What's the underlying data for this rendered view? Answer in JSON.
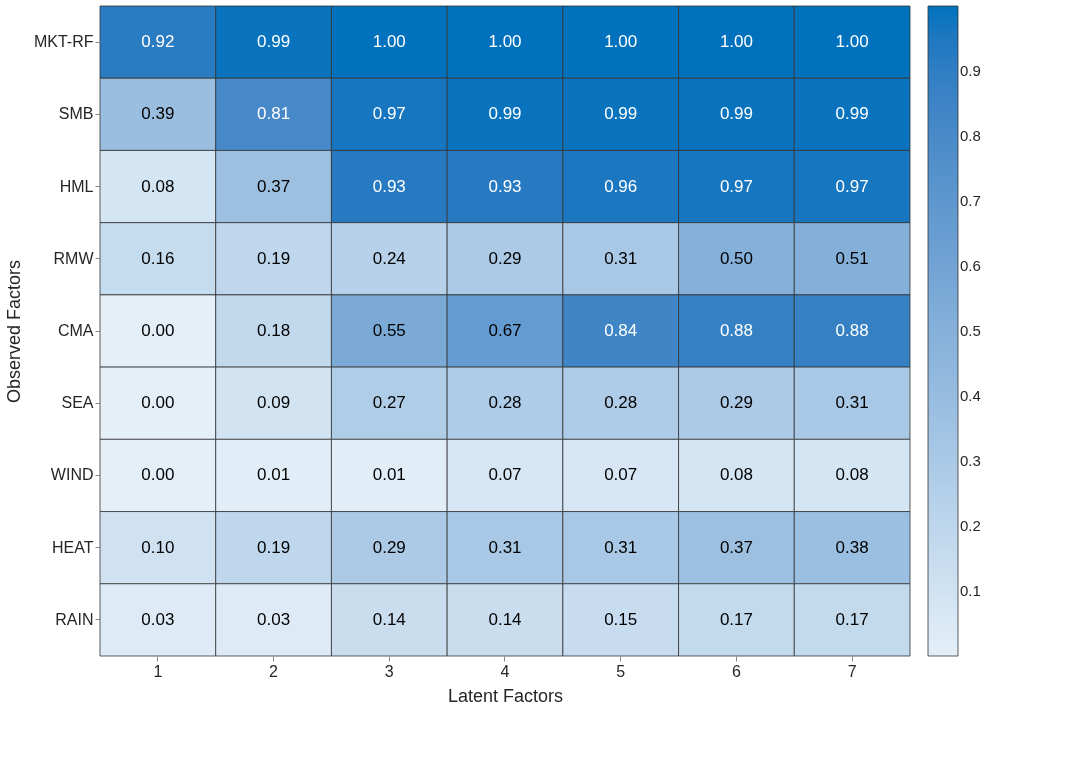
{
  "chart_data": {
    "type": "heatmap",
    "xlabel": "Latent Factors",
    "ylabel": "Observed Factors",
    "categories": [
      "1",
      "2",
      "3",
      "4",
      "5",
      "6",
      "7"
    ],
    "y_categories": [
      "MKT-RF",
      "SMB",
      "HML",
      "RMW",
      "CMA",
      "SEA",
      "WIND",
      "HEAT",
      "RAIN"
    ],
    "cells": [
      [
        0.92,
        0.99,
        1.0,
        1.0,
        1.0,
        1.0,
        1.0
      ],
      [
        0.39,
        0.81,
        0.97,
        0.99,
        0.99,
        0.99,
        0.99
      ],
      [
        0.08,
        0.37,
        0.93,
        0.93,
        0.96,
        0.97,
        0.97
      ],
      [
        0.16,
        0.19,
        0.24,
        0.29,
        0.31,
        0.5,
        0.51
      ],
      [
        0.0,
        0.18,
        0.55,
        0.67,
        0.84,
        0.88,
        0.88
      ],
      [
        0.0,
        0.09,
        0.27,
        0.28,
        0.28,
        0.29,
        0.31
      ],
      [
        0.0,
        0.01,
        0.01,
        0.07,
        0.07,
        0.08,
        0.08
      ],
      [
        0.1,
        0.19,
        0.29,
        0.31,
        0.31,
        0.37,
        0.38
      ],
      [
        0.03,
        0.03,
        0.14,
        0.14,
        0.15,
        0.17,
        0.17
      ]
    ],
    "cell_labels": [
      [
        "0.92",
        "0.99",
        "1.00",
        "1.00",
        "1.00",
        "1.00",
        "1.00"
      ],
      [
        "0.39",
        "0.81",
        "0.97",
        "0.99",
        "0.99",
        "0.99",
        "0.99"
      ],
      [
        "0.08",
        "0.37",
        "0.93",
        "0.93",
        "0.96",
        "0.97",
        "0.97"
      ],
      [
        "0.16",
        "0.19",
        "0.24",
        "0.29",
        "0.31",
        "0.50",
        "0.51"
      ],
      [
        "0.00",
        "0.18",
        "0.55",
        "0.67",
        "0.84",
        "0.88",
        "0.88"
      ],
      [
        "0.00",
        "0.09",
        "0.27",
        "0.28",
        "0.28",
        "0.29",
        "0.31"
      ],
      [
        "0.00",
        "0.01",
        "0.01",
        "0.07",
        "0.07",
        "0.08",
        "0.08"
      ],
      [
        "0.10",
        "0.19",
        "0.29",
        "0.31",
        "0.31",
        "0.37",
        "0.38"
      ],
      [
        "0.03",
        "0.03",
        "0.14",
        "0.14",
        "0.15",
        "0.17",
        "0.17"
      ]
    ],
    "colors": [
      "#e4eff8",
      "#0072bd"
    ],
    "clim": [
      0,
      1
    ],
    "cticks": [
      0.1,
      0.2,
      0.3,
      0.4,
      0.5,
      0.6,
      0.7,
      0.8,
      0.9
    ],
    "data_labels": true
  }
}
